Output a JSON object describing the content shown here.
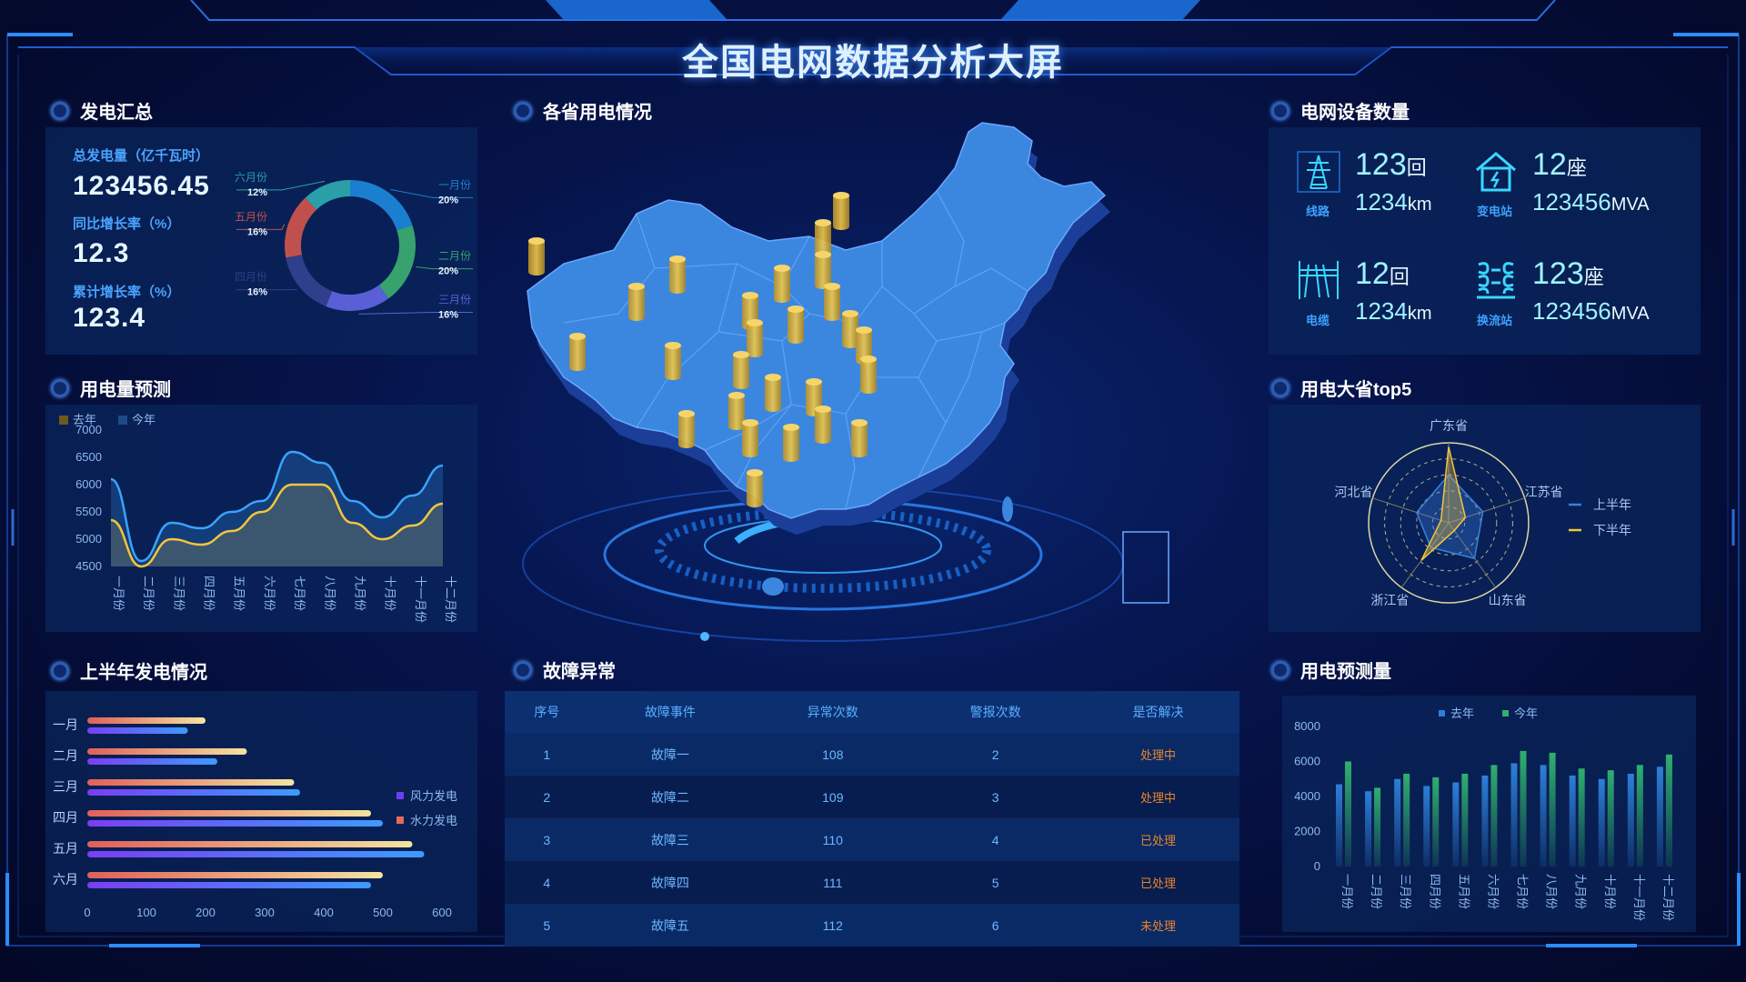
{
  "title": "全国电网数据分析大屏",
  "colors": {
    "accent": "#2f8cff",
    "gold": "#f3c53c",
    "teal": "#38e2ff",
    "orange": "#e8842b"
  },
  "sections": {
    "power_summary": "发电汇总",
    "province_usage": "各省用电情况",
    "equipment": "电网设备数量",
    "forecast": "用电量预测",
    "top5": "用电大省top5",
    "half_year": "上半年发电情况",
    "faults": "故障异常",
    "forecast_amount": "用电预测量"
  },
  "summary": {
    "total_label": "总发电量（亿千瓦时）",
    "total_value": "123456.45",
    "yoy_label": "同比增长率（%）",
    "yoy_value": "12.3",
    "cum_label": "累计增长率（%）",
    "cum_value": "123.4"
  },
  "equipment": [
    {
      "icon": "transmission-tower-icon",
      "label": "线路",
      "num": "123",
      "unit": "回",
      "sub": "1234",
      "sub_unit": "km"
    },
    {
      "icon": "substation-icon",
      "label": "变电站",
      "num": "12",
      "unit": "座",
      "sub": "123456",
      "sub_unit": "MVA"
    },
    {
      "icon": "cable-icon",
      "label": "电缆",
      "num": "12",
      "unit": "回",
      "sub": "1234",
      "sub_unit": "km"
    },
    {
      "icon": "converter-station-icon",
      "label": "换流站",
      "num": "123",
      "unit": "座",
      "sub": "123456",
      "sub_unit": "MVA"
    }
  ],
  "faults": {
    "headers": [
      "序号",
      "故障事件",
      "异常次数",
      "警报次数",
      "是否解决"
    ],
    "rows": [
      [
        "1",
        "故障一",
        "108",
        "2",
        "处理中"
      ],
      [
        "2",
        "故障二",
        "109",
        "3",
        "处理中"
      ],
      [
        "3",
        "故障三",
        "110",
        "4",
        "已处理"
      ],
      [
        "4",
        "故障四",
        "111",
        "5",
        "已处理"
      ],
      [
        "5",
        "故障五",
        "112",
        "6",
        "未处理"
      ]
    ]
  },
  "chart_data": [
    {
      "id": "donut",
      "type": "pie",
      "categories": [
        "一月份",
        "二月份",
        "三月份",
        "四月份",
        "五月份",
        "六月份"
      ],
      "values": [
        20,
        20,
        16,
        16,
        16,
        12
      ],
      "labels": [
        "20%",
        "20%",
        "16%",
        "16%",
        "16%",
        "12%"
      ],
      "colors": [
        "#1b7fd0",
        "#38a26e",
        "#5a5fd6",
        "#2f3f8c",
        "#c0504d",
        "#2a9fa8"
      ]
    },
    {
      "id": "forecast_line",
      "type": "area",
      "categories": [
        "一月份",
        "二月份",
        "三月份",
        "四月份",
        "五月份",
        "六月份",
        "七月份",
        "八月份",
        "九月份",
        "十月份",
        "十一月份",
        "十二月份"
      ],
      "series": [
        {
          "name": "去年",
          "values": [
            5350,
            4500,
            5000,
            4900,
            5150,
            5500,
            6000,
            6000,
            5300,
            5000,
            5250,
            5650
          ],
          "color": "#f3c53c"
        },
        {
          "name": "今年",
          "values": [
            6100,
            4600,
            5300,
            5200,
            5500,
            5700,
            6600,
            6400,
            5700,
            5400,
            5800,
            6350
          ],
          "color": "#3aa3ff"
        }
      ],
      "ylim": [
        4500,
        7000
      ],
      "yticks": [
        4500,
        5000,
        5500,
        6000,
        6500,
        7000
      ]
    },
    {
      "id": "top5_radar",
      "type": "radar",
      "categories": [
        "广东省",
        "江苏省",
        "山东省",
        "浙江省",
        "河北省"
      ],
      "series": [
        {
          "name": "上半年",
          "values": [
            60,
            45,
            55,
            38,
            42
          ],
          "color": "#3a7fdc"
        },
        {
          "name": "下半年",
          "values": [
            95,
            22,
            12,
            58,
            10
          ],
          "color": "#f3c53c"
        }
      ],
      "max": 100
    },
    {
      "id": "half_year_bar",
      "type": "bar",
      "orientation": "horizontal",
      "categories": [
        "一月",
        "二月",
        "三月",
        "四月",
        "五月",
        "六月"
      ],
      "series": [
        {
          "name": "风力发电",
          "values": [
            170,
            220,
            360,
            500,
            570,
            480
          ],
          "color": "#6b3ff0"
        },
        {
          "name": "水力发电",
          "values": [
            200,
            270,
            350,
            480,
            550,
            500
          ],
          "color": "#e36b5a"
        }
      ],
      "xlim": [
        0,
        600
      ],
      "xticks": [
        0,
        100,
        200,
        300,
        400,
        500,
        600
      ]
    },
    {
      "id": "forecast_bar",
      "type": "bar",
      "categories": [
        "一月份",
        "二月份",
        "三月份",
        "四月份",
        "五月份",
        "六月份",
        "七月份",
        "八月份",
        "九月份",
        "十月份",
        "十一月份",
        "十二月份"
      ],
      "series": [
        {
          "name": "去年",
          "values": [
            4700,
            4300,
            5000,
            4600,
            4800,
            5200,
            5900,
            5800,
            5200,
            5000,
            5300,
            5700
          ],
          "color": "#2d7fd8"
        },
        {
          "name": "今年",
          "values": [
            6000,
            4500,
            5300,
            5100,
            5300,
            5800,
            6600,
            6500,
            5600,
            5500,
            5800,
            6400
          ],
          "color": "#2fb06e"
        }
      ],
      "ylim": [
        0,
        8000
      ],
      "yticks": [
        0,
        2000,
        4000,
        6000,
        8000
      ]
    }
  ]
}
